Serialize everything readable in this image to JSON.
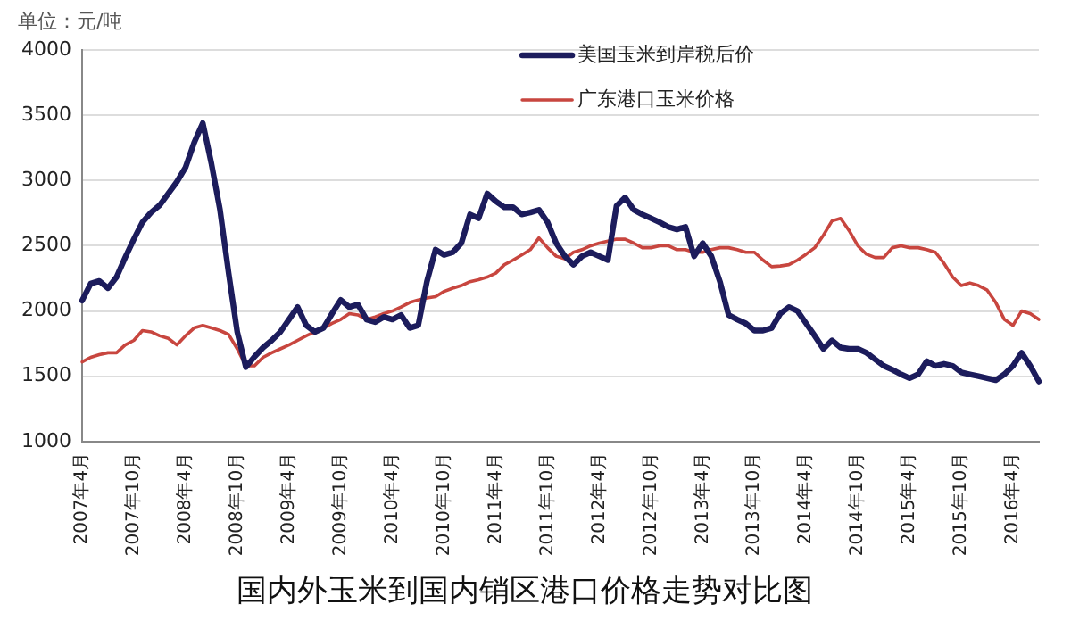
{
  "chart_data": {
    "type": "line",
    "title": "国内外玉米到国内销区港口价格走势对比图",
    "ylabel": "单位：元/吨",
    "categories": [
      "2007年4月",
      null,
      null,
      null,
      null,
      null,
      "2007年10月",
      null,
      null,
      null,
      null,
      null,
      "2008年4月",
      null,
      null,
      null,
      null,
      null,
      "2008年10月",
      null,
      null,
      null,
      null,
      null,
      "2009年4月",
      null,
      null,
      null,
      null,
      null,
      "2009年10月",
      null,
      null,
      null,
      null,
      null,
      "2010年4月",
      null,
      null,
      null,
      null,
      null,
      "2010年10月",
      null,
      null,
      null,
      null,
      null,
      "2011年4月",
      null,
      null,
      null,
      null,
      null,
      "2011年10月",
      null,
      null,
      null,
      null,
      null,
      "2012年4月",
      null,
      null,
      null,
      null,
      null,
      "2012年10月",
      null,
      null,
      null,
      null,
      null,
      "2013年4月",
      null,
      null,
      null,
      null,
      null,
      "2013年10月",
      null,
      null,
      null,
      null,
      null,
      "2014年4月",
      null,
      null,
      null,
      null,
      null,
      "2014年10月",
      null,
      null,
      null,
      null,
      null,
      "2015年4月",
      null,
      null,
      null,
      null,
      null,
      "2015年10月",
      null,
      null,
      null,
      null,
      null,
      "2016年4月",
      null,
      null,
      null
    ],
    "series": [
      {
        "name": "美国玉米到岸税后价",
        "color": "#1c1c5c",
        "values": [
          2080,
          2210,
          2230,
          2175,
          2260,
          2410,
          2550,
          2680,
          2755,
          2810,
          2900,
          2990,
          3100,
          3290,
          3440,
          3130,
          2775,
          2290,
          1840,
          1570,
          1650,
          1720,
          1775,
          1840,
          1935,
          2030,
          1890,
          1840,
          1870,
          1980,
          2085,
          2030,
          2050,
          1935,
          1915,
          1955,
          1935,
          1970,
          1870,
          1890,
          2225,
          2470,
          2430,
          2450,
          2520,
          2740,
          2710,
          2900,
          2840,
          2795,
          2795,
          2740,
          2755,
          2775,
          2680,
          2520,
          2420,
          2355,
          2420,
          2450,
          2420,
          2390,
          2805,
          2870,
          2775,
          2740,
          2710,
          2680,
          2645,
          2625,
          2645,
          2420,
          2520,
          2420,
          2225,
          1970,
          1935,
          1905,
          1850,
          1850,
          1870,
          1980,
          2030,
          2000,
          1905,
          1810,
          1710,
          1775,
          1720,
          1710,
          1710,
          1680,
          1630,
          1580,
          1550,
          1515,
          1485,
          1515,
          1615,
          1580,
          1595,
          1580,
          1530,
          1515,
          1500,
          1485,
          1470,
          1515,
          1580,
          1680,
          1580,
          1460
        ]
      },
      {
        "name": "广东港口玉米价格",
        "color": "#c8463f",
        "values": [
          1610,
          1645,
          1665,
          1680,
          1680,
          1740,
          1775,
          1850,
          1840,
          1810,
          1790,
          1740,
          1810,
          1870,
          1890,
          1870,
          1850,
          1820,
          1710,
          1580,
          1580,
          1645,
          1680,
          1710,
          1740,
          1775,
          1810,
          1840,
          1870,
          1905,
          1935,
          1980,
          1970,
          1935,
          1955,
          1980,
          2000,
          2030,
          2065,
          2085,
          2100,
          2110,
          2150,
          2175,
          2195,
          2225,
          2240,
          2260,
          2290,
          2355,
          2390,
          2430,
          2470,
          2560,
          2485,
          2420,
          2400,
          2450,
          2470,
          2500,
          2520,
          2535,
          2550,
          2550,
          2520,
          2485,
          2485,
          2500,
          2500,
          2470,
          2470,
          2450,
          2450,
          2470,
          2485,
          2485,
          2470,
          2450,
          2450,
          2390,
          2340,
          2345,
          2355,
          2390,
          2435,
          2485,
          2580,
          2690,
          2710,
          2615,
          2500,
          2435,
          2410,
          2410,
          2485,
          2500,
          2485,
          2485,
          2470,
          2450,
          2365,
          2260,
          2195,
          2215,
          2195,
          2160,
          2065,
          1935,
          1890,
          2000,
          1980,
          1935
        ]
      }
    ],
    "ylim": [
      1000,
      4000
    ],
    "yticks": [
      1000,
      1500,
      2000,
      2500,
      3000,
      3500,
      4000
    ],
    "grid": "y",
    "legend": "top right",
    "marker": "none",
    "line_style": "solid"
  }
}
